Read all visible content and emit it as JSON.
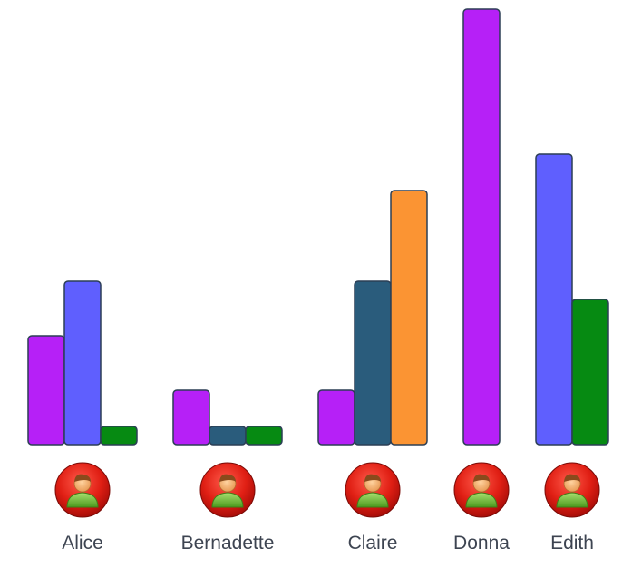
{
  "chart_data": {
    "type": "bar",
    "title": "",
    "xlabel": "",
    "ylabel": "",
    "ylim": [
      0,
      12
    ],
    "grid": false,
    "legend": "none",
    "avatar_icon": "user-avatar-icon",
    "groups": [
      {
        "label": "Alice",
        "bars": [
          {
            "value": 3,
            "color": "#b620f7"
          },
          {
            "value": 4.5,
            "color": "#5f5ffe"
          },
          {
            "value": 0.5,
            "color": "#068a12"
          }
        ]
      },
      {
        "label": "Bernadette",
        "bars": [
          {
            "value": 1.5,
            "color": "#b620f7"
          },
          {
            "value": 0.5,
            "color": "#2a5c7c"
          },
          {
            "value": 0.5,
            "color": "#068a12"
          }
        ]
      },
      {
        "label": "Claire",
        "bars": [
          {
            "value": 1.5,
            "color": "#b620f7"
          },
          {
            "value": 4.5,
            "color": "#2a5c7c"
          },
          {
            "value": 7,
            "color": "#fb9433"
          }
        ]
      },
      {
        "label": "Donna",
        "bars": [
          {
            "value": 12,
            "color": "#b620f7"
          }
        ]
      },
      {
        "label": "Edith",
        "bars": [
          {
            "value": 8,
            "color": "#5f5ffe"
          },
          {
            "value": 4,
            "color": "#068a12"
          }
        ]
      }
    ]
  }
}
